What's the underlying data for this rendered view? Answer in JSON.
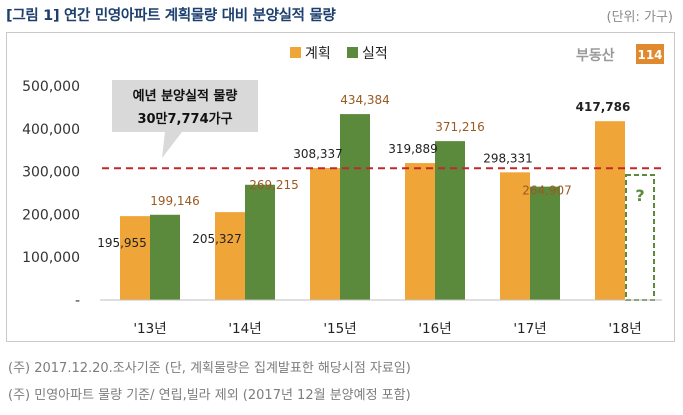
{
  "header": {
    "title": "[그림 1] 연간 민영아파트 계획물량 대비 분양실적 물량",
    "unit": "(단위: 가구)"
  },
  "logo": {
    "text": "부동산114",
    "main": "부동산",
    "badge": "114"
  },
  "colors": {
    "plan": "#f0a538",
    "actual": "#5c8a3c",
    "refline": "#c0282a",
    "title": "#1d3f6e"
  },
  "chart_data": {
    "type": "bar",
    "categories": [
      "'13년",
      "'14년",
      "'15년",
      "'16년",
      "'17년",
      "'18년"
    ],
    "series": [
      {
        "name": "계획",
        "values": [
          195955,
          205327,
          308337,
          319889,
          298331,
          417786
        ],
        "labels": [
          "195,955",
          "205,327",
          "308,337",
          "319,889",
          "298,331",
          "417,786"
        ]
      },
      {
        "name": "실적",
        "values": [
          199146,
          269215,
          434384,
          371216,
          264907,
          null
        ],
        "labels": [
          "199,146",
          "269,215",
          "434,384",
          "371,216",
          "264,907",
          "?"
        ]
      }
    ],
    "ylim": [
      0,
      500000
    ],
    "yticks": [
      0,
      100000,
      200000,
      300000,
      400000,
      500000
    ],
    "ytick_labels": [
      "-",
      "100,000",
      "200,000",
      "300,000",
      "400,000",
      "500,000"
    ],
    "reference_line": {
      "value": 307774,
      "style": "dashed"
    },
    "callout": {
      "line1": "예년 분양실적 물량",
      "line2": "30만7,774가구"
    },
    "legend": {
      "position": "top"
    },
    "grid": false
  },
  "notes": [
    "(주) 2017.12.20.조사기준 (단, 계획물량은 집계발표한 해당시점 자료임)",
    "(주) 민영아파트 물량 기준/ 연립,빌라 제외 (2017년 12월 분양예정 포함)"
  ]
}
